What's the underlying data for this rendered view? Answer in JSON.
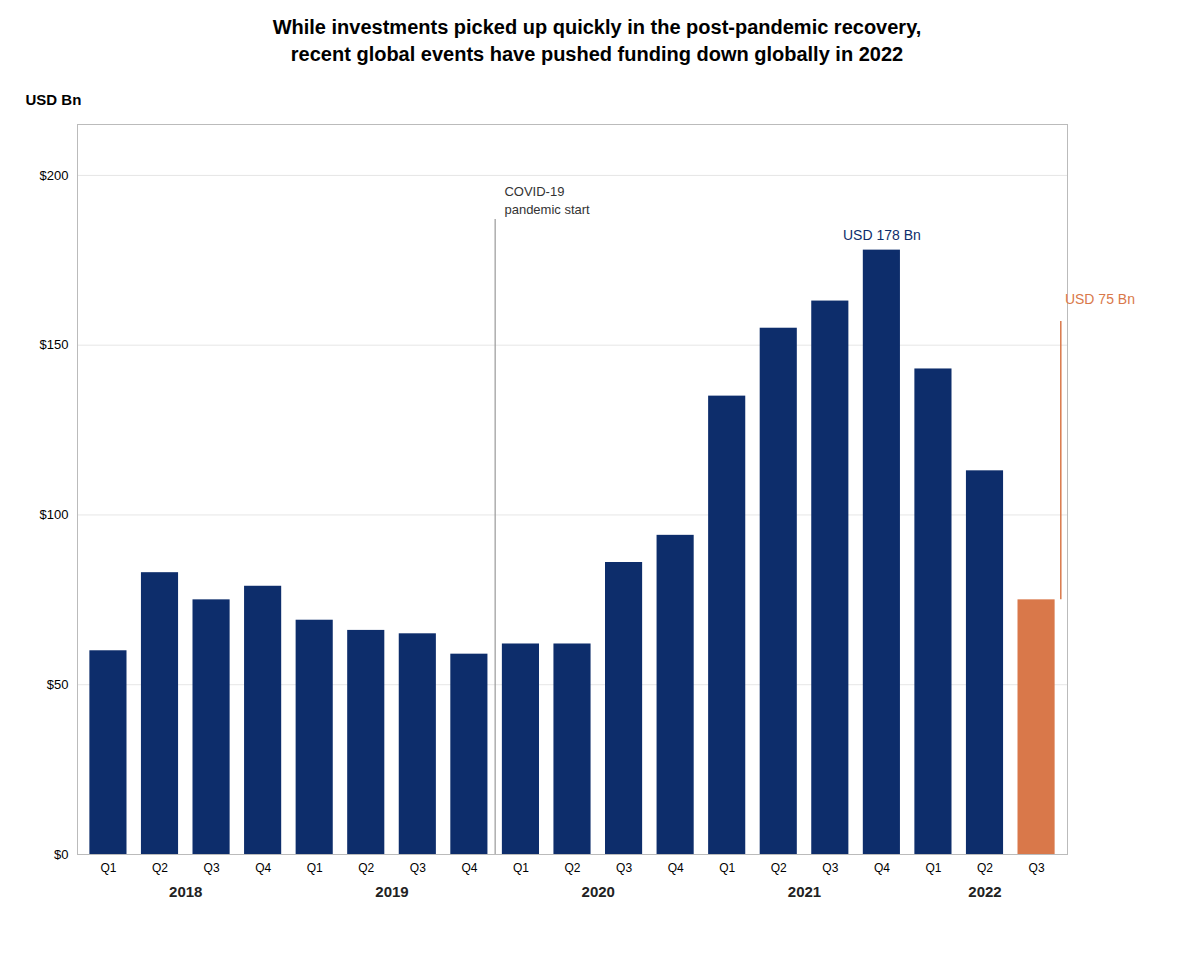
{
  "chart_data": {
    "type": "bar",
    "title": "While investments picked up quickly in the post-pandemic recovery,\nrecent global events have pushed funding down globally in 2022",
    "ylabel": "USD Bn",
    "categories": [
      "Q1",
      "Q2",
      "Q3",
      "Q4",
      "Q1",
      "Q2",
      "Q3",
      "Q4",
      "Q1",
      "Q2",
      "Q3",
      "Q4",
      "Q1",
      "Q2",
      "Q3",
      "Q4",
      "Q1",
      "Q2",
      "Q3"
    ],
    "group_labels": [
      "2018",
      "2019",
      "2020",
      "2021",
      "2022"
    ],
    "values": [
      60,
      83,
      75,
      79,
      69,
      66,
      65,
      59,
      62,
      62,
      86,
      94,
      135,
      155,
      163,
      178,
      143,
      113,
      75
    ],
    "colors": [
      "#0d2d6b",
      "#0d2d6b",
      "#0d2d6b",
      "#0d2d6b",
      "#0d2d6b",
      "#0d2d6b",
      "#0d2d6b",
      "#0d2d6b",
      "#0d2d6b",
      "#0d2d6b",
      "#0d2d6b",
      "#0d2d6b",
      "#0d2d6b",
      "#0d2d6b",
      "#0d2d6b",
      "#0d2d6b",
      "#0d2d6b",
      "#0d2d6b",
      "#d9784a"
    ],
    "ylim": [
      0,
      215
    ],
    "yticks": [
      {
        "value": 0,
        "label": "$0"
      },
      {
        "value": 50,
        "label": "$50"
      },
      {
        "value": 100,
        "label": "$100"
      },
      {
        "value": 150,
        "label": "$150"
      },
      {
        "value": 200,
        "label": "$200"
      }
    ],
    "grid": true,
    "annotations": [
      {
        "text": "COVID-19\npandemic start",
        "x": 7.5
      },
      {
        "text": "USD 178 Bn",
        "x": 15,
        "y": 178,
        "color": "#0d2d6b"
      },
      {
        "text": "USD 75 Bn",
        "x": 18,
        "y": 75,
        "color": "#d9784a"
      }
    ]
  }
}
